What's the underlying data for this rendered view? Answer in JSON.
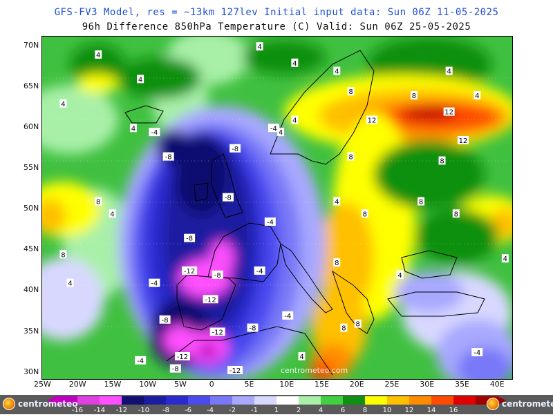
{
  "header": {
    "line1": "GFS-FV3 Model, res = ~13km 127lev   Initial input data: Sun 06Z 11-05-2025",
    "line2": "96h Difference 850hPa Temperature (C)  Valid: Sun 06Z 25-05-2025"
  },
  "axes": {
    "lat_labels": [
      "70N",
      "65N",
      "60N",
      "55N",
      "50N",
      "45N",
      "40N",
      "35N",
      "30N"
    ],
    "lon_labels": [
      "25W",
      "20W",
      "15W",
      "10W",
      "5W",
      "0",
      "5E",
      "10E",
      "15E",
      "20E",
      "25E",
      "30E",
      "35E",
      "40E"
    ]
  },
  "watermark": "centrometeo.com",
  "contour_labels": [
    {
      "text": "4",
      "lon": -17,
      "lat": 69
    },
    {
      "text": "4",
      "lon": -22,
      "lat": 63
    },
    {
      "text": "4",
      "lon": -11,
      "lat": 66
    },
    {
      "text": "4",
      "lon": 6,
      "lat": 70
    },
    {
      "text": "4",
      "lon": 11,
      "lat": 68
    },
    {
      "text": "4",
      "lon": 17,
      "lat": 67
    },
    {
      "text": "4",
      "lon": 33,
      "lat": 67
    },
    {
      "text": "4",
      "lon": -12,
      "lat": 60
    },
    {
      "text": "-4",
      "lon": -9,
      "lat": 59.5
    },
    {
      "text": "-4",
      "lon": 8,
      "lat": 60
    },
    {
      "text": "4",
      "lon": 11,
      "lat": 61
    },
    {
      "text": "4",
      "lon": 9,
      "lat": 59.5
    },
    {
      "text": "8",
      "lon": 19,
      "lat": 64.5
    },
    {
      "text": "8",
      "lon": 28,
      "lat": 64
    },
    {
      "text": "4",
      "lon": 37,
      "lat": 64
    },
    {
      "text": "12",
      "lon": 33,
      "lat": 62
    },
    {
      "text": "12",
      "lon": 22,
      "lat": 61
    },
    {
      "text": "12",
      "lon": 35,
      "lat": 58.5
    },
    {
      "text": "8",
      "lon": 19,
      "lat": 56.5
    },
    {
      "text": "8",
      "lon": 32,
      "lat": 56
    },
    {
      "text": "-8",
      "lon": -7,
      "lat": 56.5
    },
    {
      "text": "-8",
      "lon": 2.5,
      "lat": 57.5
    },
    {
      "text": "-8",
      "lon": 1.5,
      "lat": 51.5
    },
    {
      "text": "8",
      "lon": -17,
      "lat": 51
    },
    {
      "text": "4",
      "lon": -15,
      "lat": 49.5
    },
    {
      "text": "8",
      "lon": -22,
      "lat": 44.5
    },
    {
      "text": "4",
      "lon": -21,
      "lat": 41
    },
    {
      "text": "4",
      "lon": 17,
      "lat": 51
    },
    {
      "text": "8",
      "lon": 21,
      "lat": 49.5
    },
    {
      "text": "8",
      "lon": 29,
      "lat": 51
    },
    {
      "text": "8",
      "lon": 34,
      "lat": 49.5
    },
    {
      "text": "-4",
      "lon": 7.5,
      "lat": 48.5
    },
    {
      "text": "-8",
      "lon": -4,
      "lat": 46.5
    },
    {
      "text": "-12",
      "lon": -4,
      "lat": 42.5
    },
    {
      "text": "-8",
      "lon": 0,
      "lat": 42
    },
    {
      "text": "-4",
      "lon": 6,
      "lat": 42.5
    },
    {
      "text": "-4",
      "lon": -9,
      "lat": 41
    },
    {
      "text": "8",
      "lon": 17,
      "lat": 43.5
    },
    {
      "text": "4",
      "lon": 26,
      "lat": 42
    },
    {
      "text": "4",
      "lon": 41,
      "lat": 44
    },
    {
      "text": "-12",
      "lon": -1,
      "lat": 39
    },
    {
      "text": "-8",
      "lon": -7.5,
      "lat": 36.5
    },
    {
      "text": "-8",
      "lon": 5,
      "lat": 35.5
    },
    {
      "text": "-4",
      "lon": 10,
      "lat": 37
    },
    {
      "text": "8",
      "lon": 18,
      "lat": 35.5
    },
    {
      "text": "8",
      "lon": 20,
      "lat": 36
    },
    {
      "text": "-12",
      "lon": 0,
      "lat": 35
    },
    {
      "text": "-12",
      "lon": -5,
      "lat": 32
    },
    {
      "text": "-4",
      "lon": -11,
      "lat": 31.5
    },
    {
      "text": "-8",
      "lon": -6,
      "lat": 30.5
    },
    {
      "text": "4",
      "lon": 12,
      "lat": 32
    },
    {
      "text": "-4",
      "lon": 37,
      "lat": 32.5
    },
    {
      "text": "-12",
      "lon": 2.5,
      "lat": 30.3
    }
  ],
  "colorbar": {
    "ticks": [
      "-16",
      "-14",
      "-12",
      "-10",
      "-8",
      "-6",
      "-4",
      "-2",
      "-1",
      "1",
      "2",
      "4",
      "6",
      "8",
      "10",
      "12",
      "14",
      "16"
    ],
    "colors": [
      "#c000c0",
      "#e040e0",
      "#ff50ff",
      "#101070",
      "#1c1ca0",
      "#2a2ad0",
      "#4a4af0",
      "#7878f8",
      "#a8a8ff",
      "#d8d8ff",
      "#ffffff",
      "#a8f0a8",
      "#40d040",
      "#109010",
      "#ffff00",
      "#ffc000",
      "#ff8c00",
      "#ff4a00",
      "#e00000",
      "#a00000"
    ]
  },
  "logos": [
    "centrometeo",
    "centrometeo"
  ]
}
